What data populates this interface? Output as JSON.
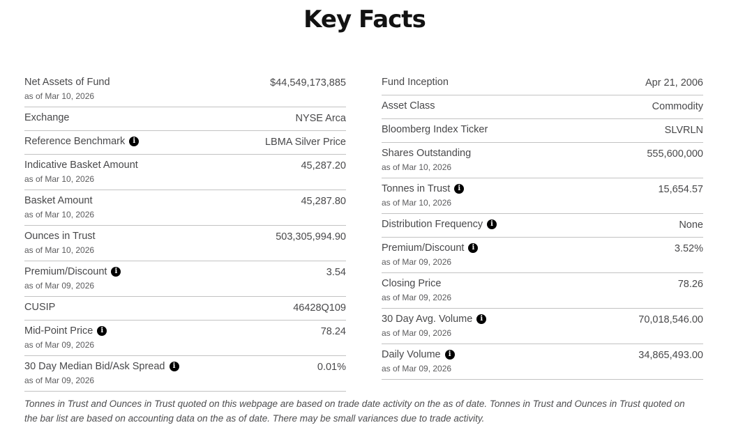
{
  "page": {
    "title": "Key Facts"
  },
  "icon_colors": {
    "info_icon_background": "#000000",
    "info_icon_glyph": "#ffffff"
  },
  "left": {
    "rows": [
      {
        "label": "Net Assets of Fund",
        "asof": "as of Mar 10, 2026",
        "value": "$44,549,173,885"
      },
      {
        "label": "Exchange",
        "value": "NYSE Arca"
      },
      {
        "label": "Reference Benchmark",
        "info": "i",
        "value": "LBMA Silver Price"
      },
      {
        "label": "Indicative Basket Amount",
        "asof": "as of Mar 10, 2026",
        "value": "45,287.20"
      },
      {
        "label": "Basket Amount",
        "asof": "as of Mar 10, 2026",
        "value": "45,287.80"
      },
      {
        "label": "Ounces in Trust",
        "asof": "as of Mar 10, 2026",
        "value": "503,305,994.90"
      },
      {
        "label": "Premium/Discount",
        "info": "i",
        "asof": "as of Mar 09, 2026",
        "value": "3.54"
      },
      {
        "label": "CUSIP",
        "value": "46428Q109"
      },
      {
        "label": "Mid-Point Price",
        "info": "i",
        "asof": "as of Mar 09, 2026",
        "value": "78.24"
      },
      {
        "label": "30 Day Median Bid/Ask Spread",
        "info": "i",
        "asof": "as of Mar 09, 2026",
        "value": "0.01%"
      }
    ]
  },
  "right": {
    "rows": [
      {
        "label": "Fund Inception",
        "value": "Apr 21, 2006"
      },
      {
        "label": "Asset Class",
        "value": "Commodity"
      },
      {
        "label": "Bloomberg Index Ticker",
        "value": "SLVRLN"
      },
      {
        "label": "Shares Outstanding",
        "asof": "as of Mar 10, 2026",
        "value": "555,600,000"
      },
      {
        "label": "Tonnes in Trust",
        "info": "i",
        "asof": "as of Mar 10, 2026",
        "value": "15,654.57"
      },
      {
        "label": "Distribution Frequency",
        "info": "i",
        "value": "None"
      },
      {
        "label": "Premium/Discount",
        "info": "i",
        "asof": "as of Mar 09, 2026",
        "value": "3.52%"
      },
      {
        "label": "Closing Price",
        "asof": "as of Mar 09, 2026",
        "value": "78.26"
      },
      {
        "label": "30 Day Avg. Volume",
        "info": "i",
        "asof": "as of Mar 09, 2026",
        "value": "70,018,546.00"
      },
      {
        "label": "Daily Volume",
        "info": "i",
        "asof": "as of Mar 09, 2026",
        "value": "34,865,493.00"
      }
    ]
  },
  "footnote": "Tonnes in Trust and Ounces in Trust quoted on this webpage are based on trade date activity on the as of date. Tonnes in Trust and Ounces in Trust quoted on the bar list are based on accounting data on the as of date. There may be small variances due to trade activity."
}
